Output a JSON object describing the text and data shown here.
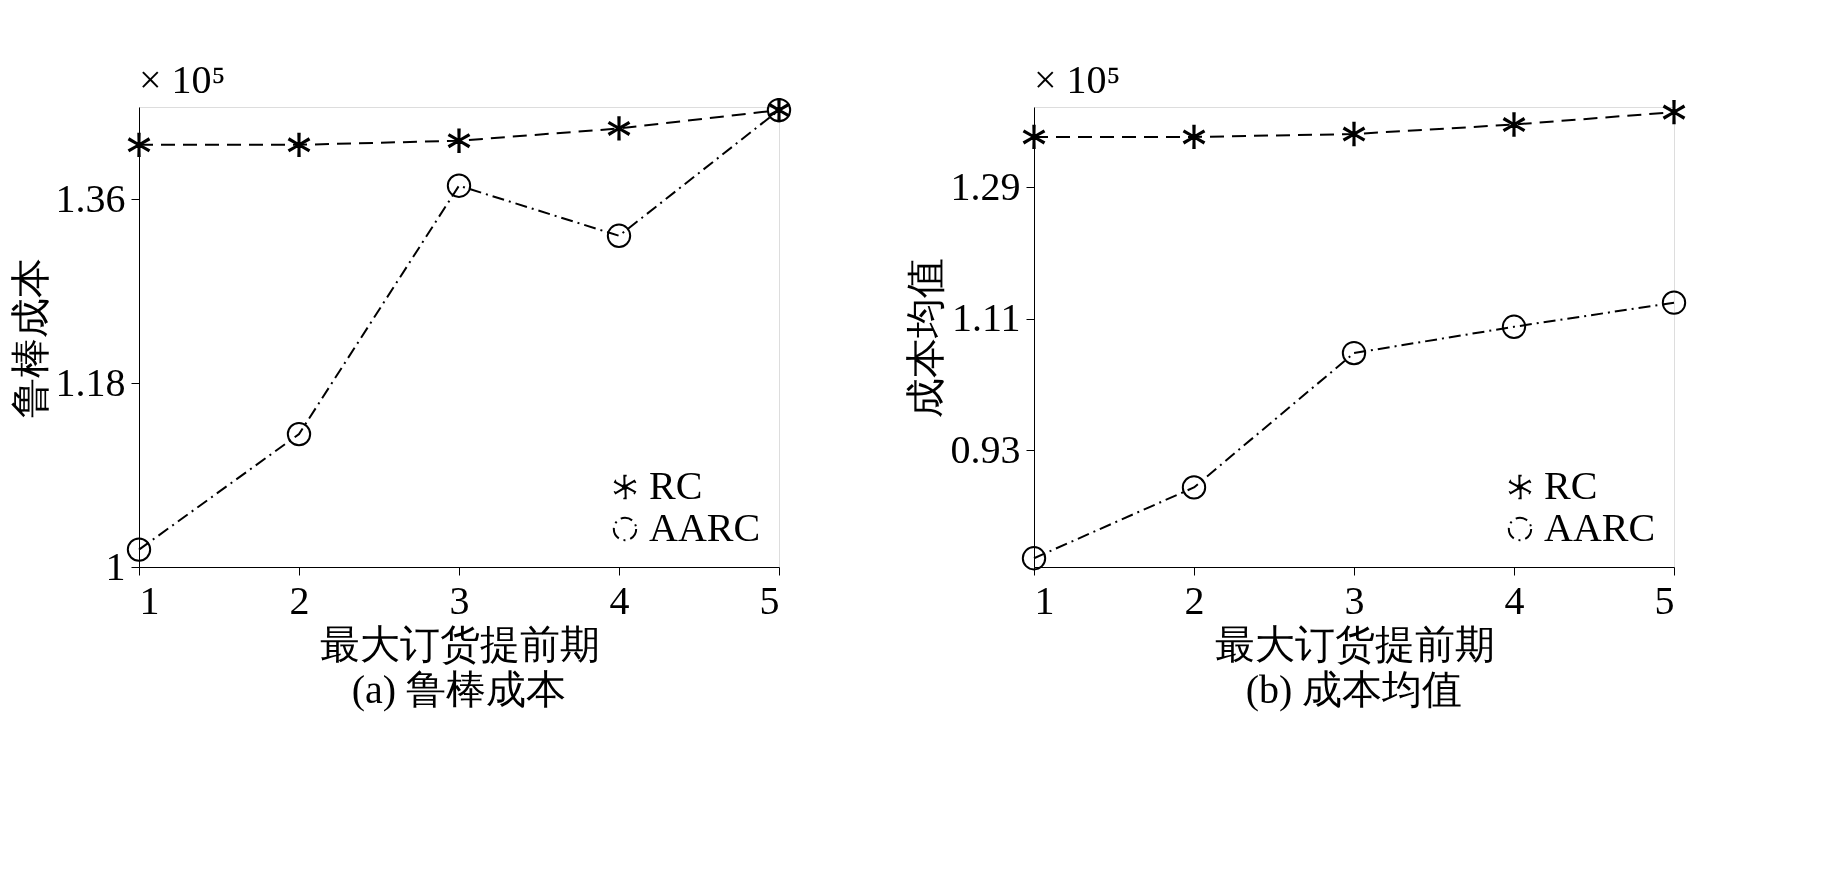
{
  "chart_data": [
    {
      "type": "line",
      "title": "(a) 鲁棒成本",
      "xlabel": "最大订货提前期",
      "ylabel": "鲁棒成本",
      "annotations": [
        "× 10⁵"
      ],
      "x": [
        1,
        2,
        3,
        4,
        5
      ],
      "xlim": [
        1,
        5
      ],
      "xticks": [
        1,
        2,
        3,
        4,
        5
      ],
      "ylim": [
        1,
        1.45
      ],
      "yticks": [
        1,
        1.18,
        1.36
      ],
      "grid": false,
      "legend": "bottom right",
      "series": [
        {
          "name": "RC",
          "color": "#000000",
          "marker": "cross",
          "line_style": "dashed",
          "values": [
            1.413,
            1.413,
            1.417,
            1.429,
            1.447
          ]
        },
        {
          "name": "AARC",
          "color": "#000000",
          "marker": "circle",
          "line_style": "dashdot",
          "values": [
            1.017,
            1.13,
            1.373,
            1.324,
            1.447
          ]
        }
      ]
    },
    {
      "type": "line",
      "title": "(b) 成本均值",
      "xlabel": "最大订货提前期",
      "ylabel": "成本均值",
      "annotations": [
        "× 10⁵"
      ],
      "x": [
        1,
        2,
        3,
        4,
        5
      ],
      "xlim": [
        1,
        5
      ],
      "xticks": [
        1,
        2,
        3,
        4,
        5
      ],
      "ylim": [
        0.77,
        1.4
      ],
      "yticks": [
        0.93,
        1.11,
        1.29
      ],
      "grid": false,
      "legend": "bottom right",
      "series": [
        {
          "name": "RC",
          "color": "#000000",
          "marker": "cross",
          "line_style": "dashed",
          "values": [
            1.359,
            1.359,
            1.363,
            1.376,
            1.393
          ]
        },
        {
          "name": "AARC",
          "color": "#000000",
          "marker": "circle",
          "line_style": "dashdot",
          "values": [
            0.782,
            0.879,
            1.063,
            1.099,
            1.132
          ]
        }
      ]
    }
  ]
}
